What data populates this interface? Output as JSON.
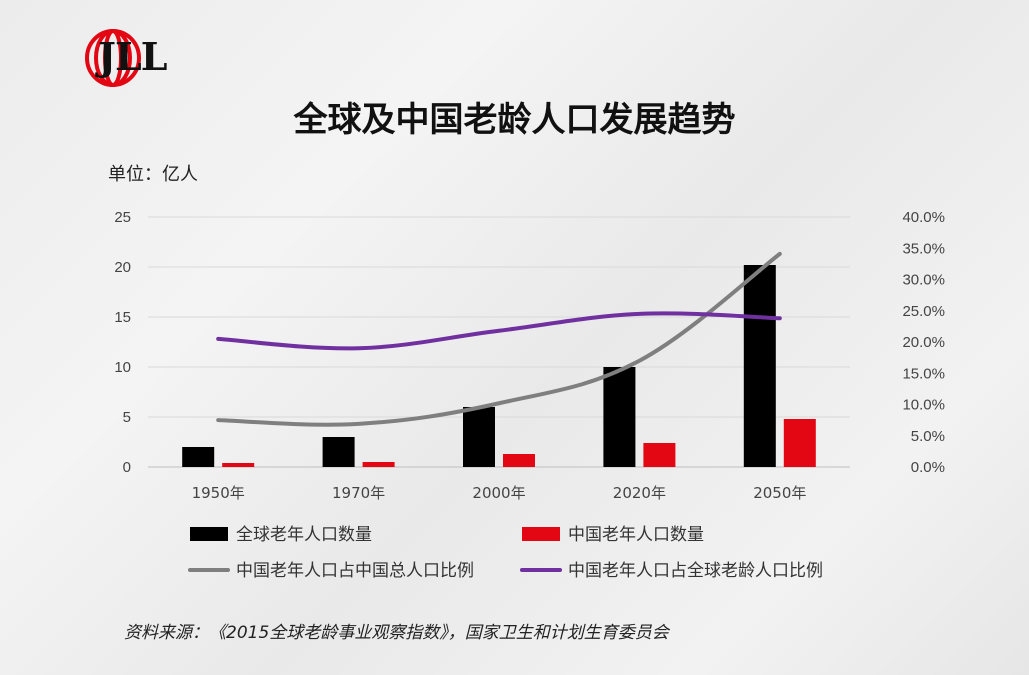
{
  "brand": {
    "logo_text": "JLL",
    "logo_color": "#e30613"
  },
  "header": {
    "title": "全球及中国老龄人口发展趋势",
    "unit": "单位：亿人"
  },
  "footer": {
    "source": "资料来源：《2015全球老龄事业观察指数》，国家卫生和计划生育委员会"
  },
  "chart_data": {
    "type": "bar",
    "categories": [
      "1950年",
      "1970年",
      "2000年",
      "2020年",
      "2050年"
    ],
    "left_axis": {
      "min": 0,
      "max": 25,
      "ticks": [
        "0",
        "5",
        "10",
        "15",
        "20",
        "25"
      ]
    },
    "right_axis": {
      "min": 0,
      "max": 0.4,
      "ticks": [
        "0.0%",
        "5.0%",
        "10.0%",
        "15.0%",
        "20.0%",
        "25.0%",
        "30.0%",
        "35.0%",
        "40.0%"
      ]
    },
    "series": [
      {
        "name": "全球老年人口数量",
        "kind": "bar",
        "axis": "left",
        "color": "#000000",
        "values": [
          2.0,
          3.0,
          6.0,
          10.0,
          20.2
        ]
      },
      {
        "name": "中国老年人口数量",
        "kind": "bar",
        "axis": "left",
        "color": "#e30613",
        "values": [
          0.4,
          0.5,
          1.3,
          2.4,
          4.8
        ]
      },
      {
        "name": "中国老年人口占中国总人口比例",
        "kind": "line",
        "axis": "right",
        "color": "#7f7f7f",
        "values": [
          0.075,
          0.069,
          0.102,
          0.17,
          0.341
        ]
      },
      {
        "name": "中国老年人口占全球老龄人口比例",
        "kind": "line",
        "axis": "right",
        "color": "#7030a0",
        "values": [
          0.205,
          0.19,
          0.218,
          0.245,
          0.238
        ]
      }
    ],
    "legend_position": "bottom",
    "grid": true
  }
}
